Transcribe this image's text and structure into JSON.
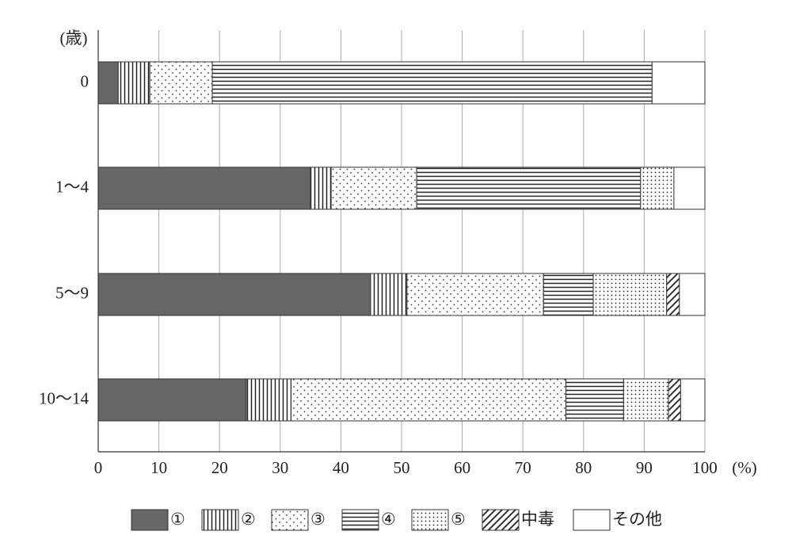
{
  "chart_data": {
    "type": "stacked-barh",
    "categories": [
      "0",
      "1～4",
      "5～9",
      "10～14"
    ],
    "y_label": "(歳)",
    "x_label": "(%)",
    "xlim": [
      0,
      100
    ],
    "xticks": [
      0,
      10,
      20,
      30,
      40,
      50,
      60,
      70,
      80,
      90,
      100
    ],
    "grid": true,
    "series": [
      {
        "name": "①",
        "pattern": "solid",
        "color": "#666666",
        "values": [
          3.3,
          35.0,
          44.9,
          24.4
        ]
      },
      {
        "name": "②",
        "pattern": "vlines",
        "color": "#222222",
        "values": [
          5.2,
          3.4,
          6.0,
          7.4
        ]
      },
      {
        "name": "③",
        "pattern": "sparse-dots",
        "color": "#222222",
        "values": [
          10.3,
          14.1,
          22.5,
          45.3
        ]
      },
      {
        "name": "④",
        "pattern": "hlines",
        "color": "#222222",
        "values": [
          72.5,
          36.9,
          8.2,
          9.5
        ]
      },
      {
        "name": "⑤",
        "pattern": "dense-dots",
        "color": "#222222",
        "values": [
          0,
          5.5,
          12.1,
          7.4
        ]
      },
      {
        "name": "中毒",
        "pattern": "diagonal",
        "color": "#222222",
        "values": [
          0,
          0,
          2.1,
          2.0
        ]
      },
      {
        "name": "その他",
        "pattern": "none",
        "color": "#ffffff",
        "values": [
          8.7,
          5.1,
          4.2,
          4.0
        ]
      }
    ]
  }
}
